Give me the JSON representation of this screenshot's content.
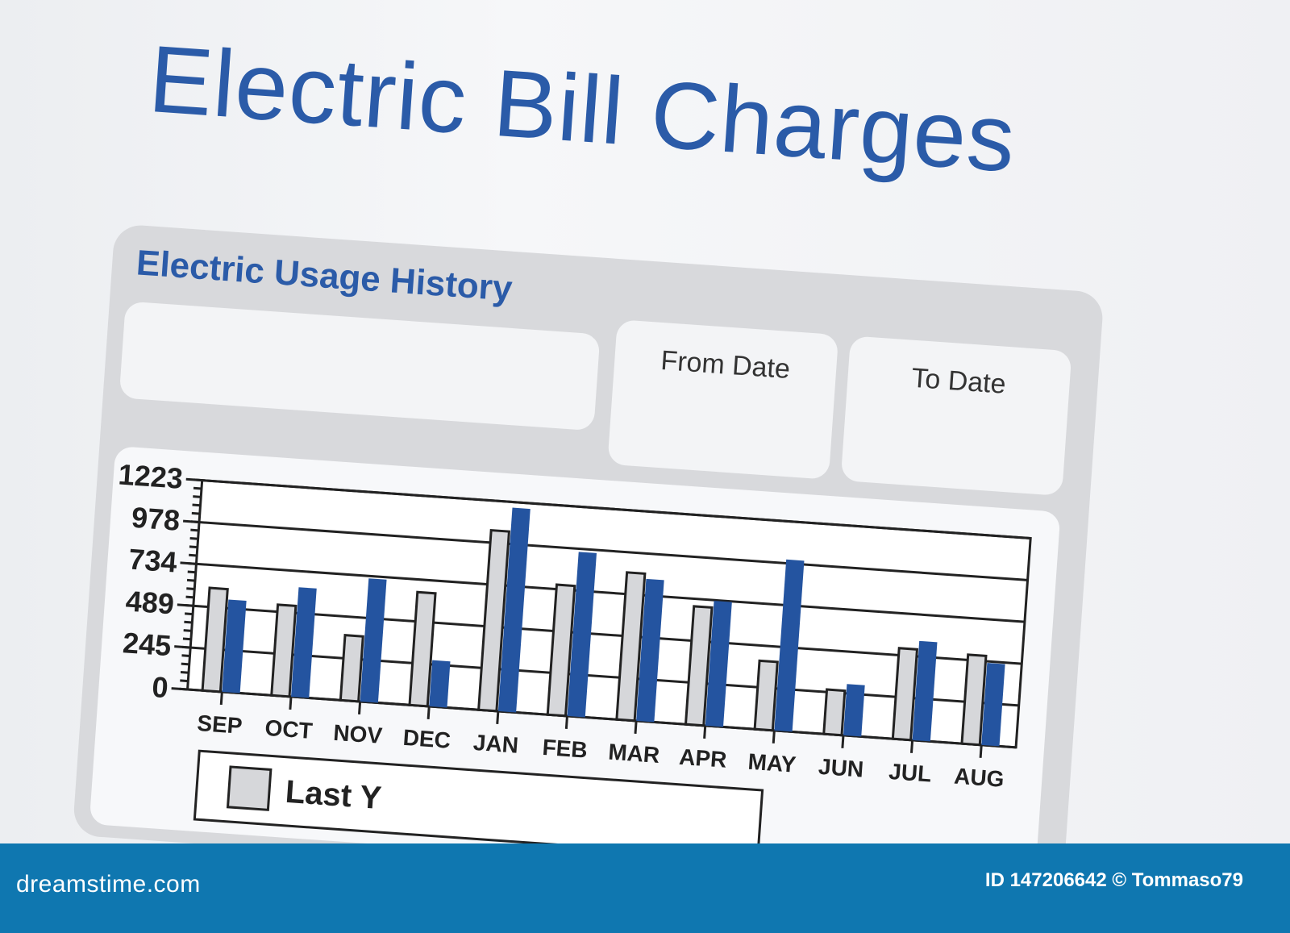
{
  "document": {
    "title": "Electric Bill Charges",
    "panel_title": "Electric Usage History",
    "from_date_label": "From Date",
    "to_date_label": "To Date"
  },
  "chart_data": {
    "type": "bar",
    "title": "",
    "xlabel": "",
    "ylabel": "",
    "categories": [
      "SEP",
      "OCT",
      "NOV",
      "DEC",
      "JAN",
      "FEB",
      "MAR",
      "APR",
      "MAY",
      "JUN",
      "JUL",
      "AUG"
    ],
    "yticks": [
      0,
      245,
      489,
      734,
      978,
      1223
    ],
    "ylim": [
      0,
      1223
    ],
    "grid": true,
    "series": [
      {
        "color": "#d6d7da",
        "values": [
          600,
          530,
          380,
          660,
          1050,
          760,
          860,
          690,
          400,
          260,
          530,
          520
        ]
      },
      {
        "color": "#2454a0",
        "values": [
          540,
          640,
          720,
          270,
          1190,
          960,
          830,
          730,
          1000,
          300,
          580,
          480
        ]
      }
    ],
    "legend": {
      "placement": "bottom",
      "entries": [
        "Last Y"
      ]
    }
  },
  "footer": {
    "logo": "dreamstime.com",
    "credit": "ID 147206642 © Tommaso79"
  },
  "colors": {
    "title": "#2b5ba8",
    "footer": "#0f77b0",
    "panel": "#d8d9dc"
  }
}
